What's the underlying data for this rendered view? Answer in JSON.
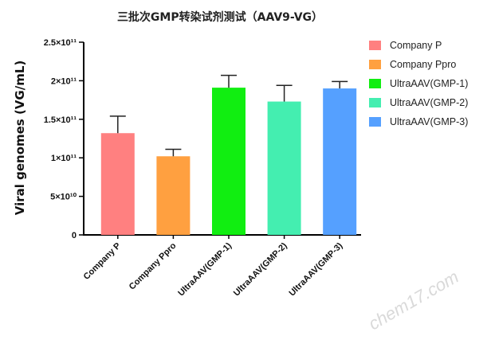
{
  "chart_data": {
    "type": "bar",
    "title": "三批次GMP转染试剂测试（AAV9-VG）",
    "xlabel": "",
    "ylabel": "Viral genomes (VG/mL)",
    "ylim": [
      0,
      250000000000.0
    ],
    "yticks": [
      {
        "value": 0,
        "label": "0"
      },
      {
        "value": 50000000000.0,
        "label": "5×10¹⁰"
      },
      {
        "value": 100000000000.0,
        "label": "1×10¹¹"
      },
      {
        "value": 150000000000.0,
        "label": "1.5×10¹¹"
      },
      {
        "value": 200000000000.0,
        "label": "2×10¹¹"
      },
      {
        "value": 250000000000.0,
        "label": "2.5×10¹¹"
      }
    ],
    "categories": [
      "Company P",
      "Company Ppro",
      "UltraAAV(GMP-1)",
      "UltraAAV(GMP-2)",
      "UltraAAV(GMP-3)"
    ],
    "values": [
      132000000000.0,
      102000000000.0,
      191000000000.0,
      173000000000.0,
      190000000000.0
    ],
    "errors": [
      22000000000.0,
      9000000000.0,
      16000000000.0,
      21000000000.0,
      9000000000.0
    ],
    "colors": [
      "#ff8080",
      "#ffa040",
      "#11ee11",
      "#44eeb0",
      "#55a0ff"
    ],
    "legend": {
      "position": "right",
      "entries": [
        "Company P",
        "Company Ppro",
        "UltraAAV(GMP-1)",
        "UltraAAV(GMP-2)",
        "UltraAAV(GMP-3)"
      ]
    },
    "grid": false
  },
  "watermark": "chem17.com"
}
